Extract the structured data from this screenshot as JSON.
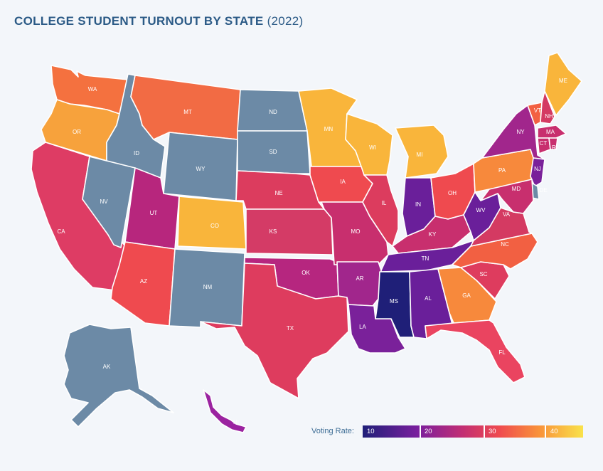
{
  "title": {
    "main": "COLLEGE STUDENT TURNOUT BY STATE",
    "year": "(2022)"
  },
  "colors": {
    "background": "#f3f6fa",
    "title": "#2b5a86",
    "no_data_gray": "#6c8aa6"
  },
  "legend": {
    "label": "Voting Rate:",
    "ticks": [
      "10",
      "20",
      "30",
      "40"
    ],
    "gradient": [
      "#1f1f78",
      "#7a1f9e",
      "#c12e74",
      "#ef4a4f",
      "#f9923a",
      "#f9e24a"
    ]
  },
  "states": [
    {
      "abbr": "WA",
      "color": "#f4713f"
    },
    {
      "abbr": "OR",
      "color": "#f7a23c"
    },
    {
      "abbr": "CA",
      "color": "#de3c64"
    },
    {
      "abbr": "ID",
      "color": "#6c8aa6"
    },
    {
      "abbr": "NV",
      "color": "#6c8aa6"
    },
    {
      "abbr": "MT",
      "color": "#f26b44"
    },
    {
      "abbr": "WY",
      "color": "#6c8aa6"
    },
    {
      "abbr": "UT",
      "color": "#b7267d"
    },
    {
      "abbr": "AZ",
      "color": "#ef4a4f"
    },
    {
      "abbr": "CO",
      "color": "#f9b53b"
    },
    {
      "abbr": "NM",
      "color": "#6c8aa6"
    },
    {
      "abbr": "ND",
      "color": "#6c8aa6"
    },
    {
      "abbr": "SD",
      "color": "#6c8aa6"
    },
    {
      "abbr": "NE",
      "color": "#dc3c5e"
    },
    {
      "abbr": "KS",
      "color": "#d43b66"
    },
    {
      "abbr": "OK",
      "color": "#b6267f"
    },
    {
      "abbr": "TX",
      "color": "#de3c5e"
    },
    {
      "abbr": "MN",
      "color": "#f9b53b"
    },
    {
      "abbr": "IA",
      "color": "#ef4a4f"
    },
    {
      "abbr": "MO",
      "color": "#c82f6e"
    },
    {
      "abbr": "AR",
      "color": "#a1268c"
    },
    {
      "abbr": "LA",
      "color": "#7a219a"
    },
    {
      "abbr": "WI",
      "color": "#f9b53b"
    },
    {
      "abbr": "IL",
      "color": "#dc3c5e"
    },
    {
      "abbr": "MI",
      "color": "#f9b53b"
    },
    {
      "abbr": "IN",
      "color": "#6a1f9a"
    },
    {
      "abbr": "OH",
      "color": "#ef4a4f"
    },
    {
      "abbr": "KY",
      "color": "#c82f6e"
    },
    {
      "abbr": "TN",
      "color": "#6a1f9a"
    },
    {
      "abbr": "MS",
      "color": "#1f1f78"
    },
    {
      "abbr": "AL",
      "color": "#6a1f9a"
    },
    {
      "abbr": "GA",
      "color": "#f7893c"
    },
    {
      "abbr": "FL",
      "color": "#ea4460"
    },
    {
      "abbr": "SC",
      "color": "#de3c5e"
    },
    {
      "abbr": "NC",
      "color": "#f26042"
    },
    {
      "abbr": "VA",
      "color": "#d43a62"
    },
    {
      "abbr": "WV",
      "color": "#6a1f9a"
    },
    {
      "abbr": "PA",
      "color": "#f7893c"
    },
    {
      "abbr": "NY",
      "color": "#a1268c"
    },
    {
      "abbr": "VT",
      "color": "#f26042"
    },
    {
      "abbr": "NH",
      "color": "#d43a62"
    },
    {
      "abbr": "ME",
      "color": "#f9b53b"
    },
    {
      "abbr": "MA",
      "color": "#c82f6e"
    },
    {
      "abbr": "CT",
      "color": "#c82f6e"
    },
    {
      "abbr": "RI",
      "color": "#c82f6e"
    },
    {
      "abbr": "NJ",
      "color": "#7a219a"
    },
    {
      "abbr": "DE",
      "color": "#6c8aa6"
    },
    {
      "abbr": "MD",
      "color": "#c82f6e"
    },
    {
      "abbr": "AK",
      "color": "#6c8aa6"
    },
    {
      "abbr": "HI",
      "color": "#9b23a0"
    }
  ]
}
